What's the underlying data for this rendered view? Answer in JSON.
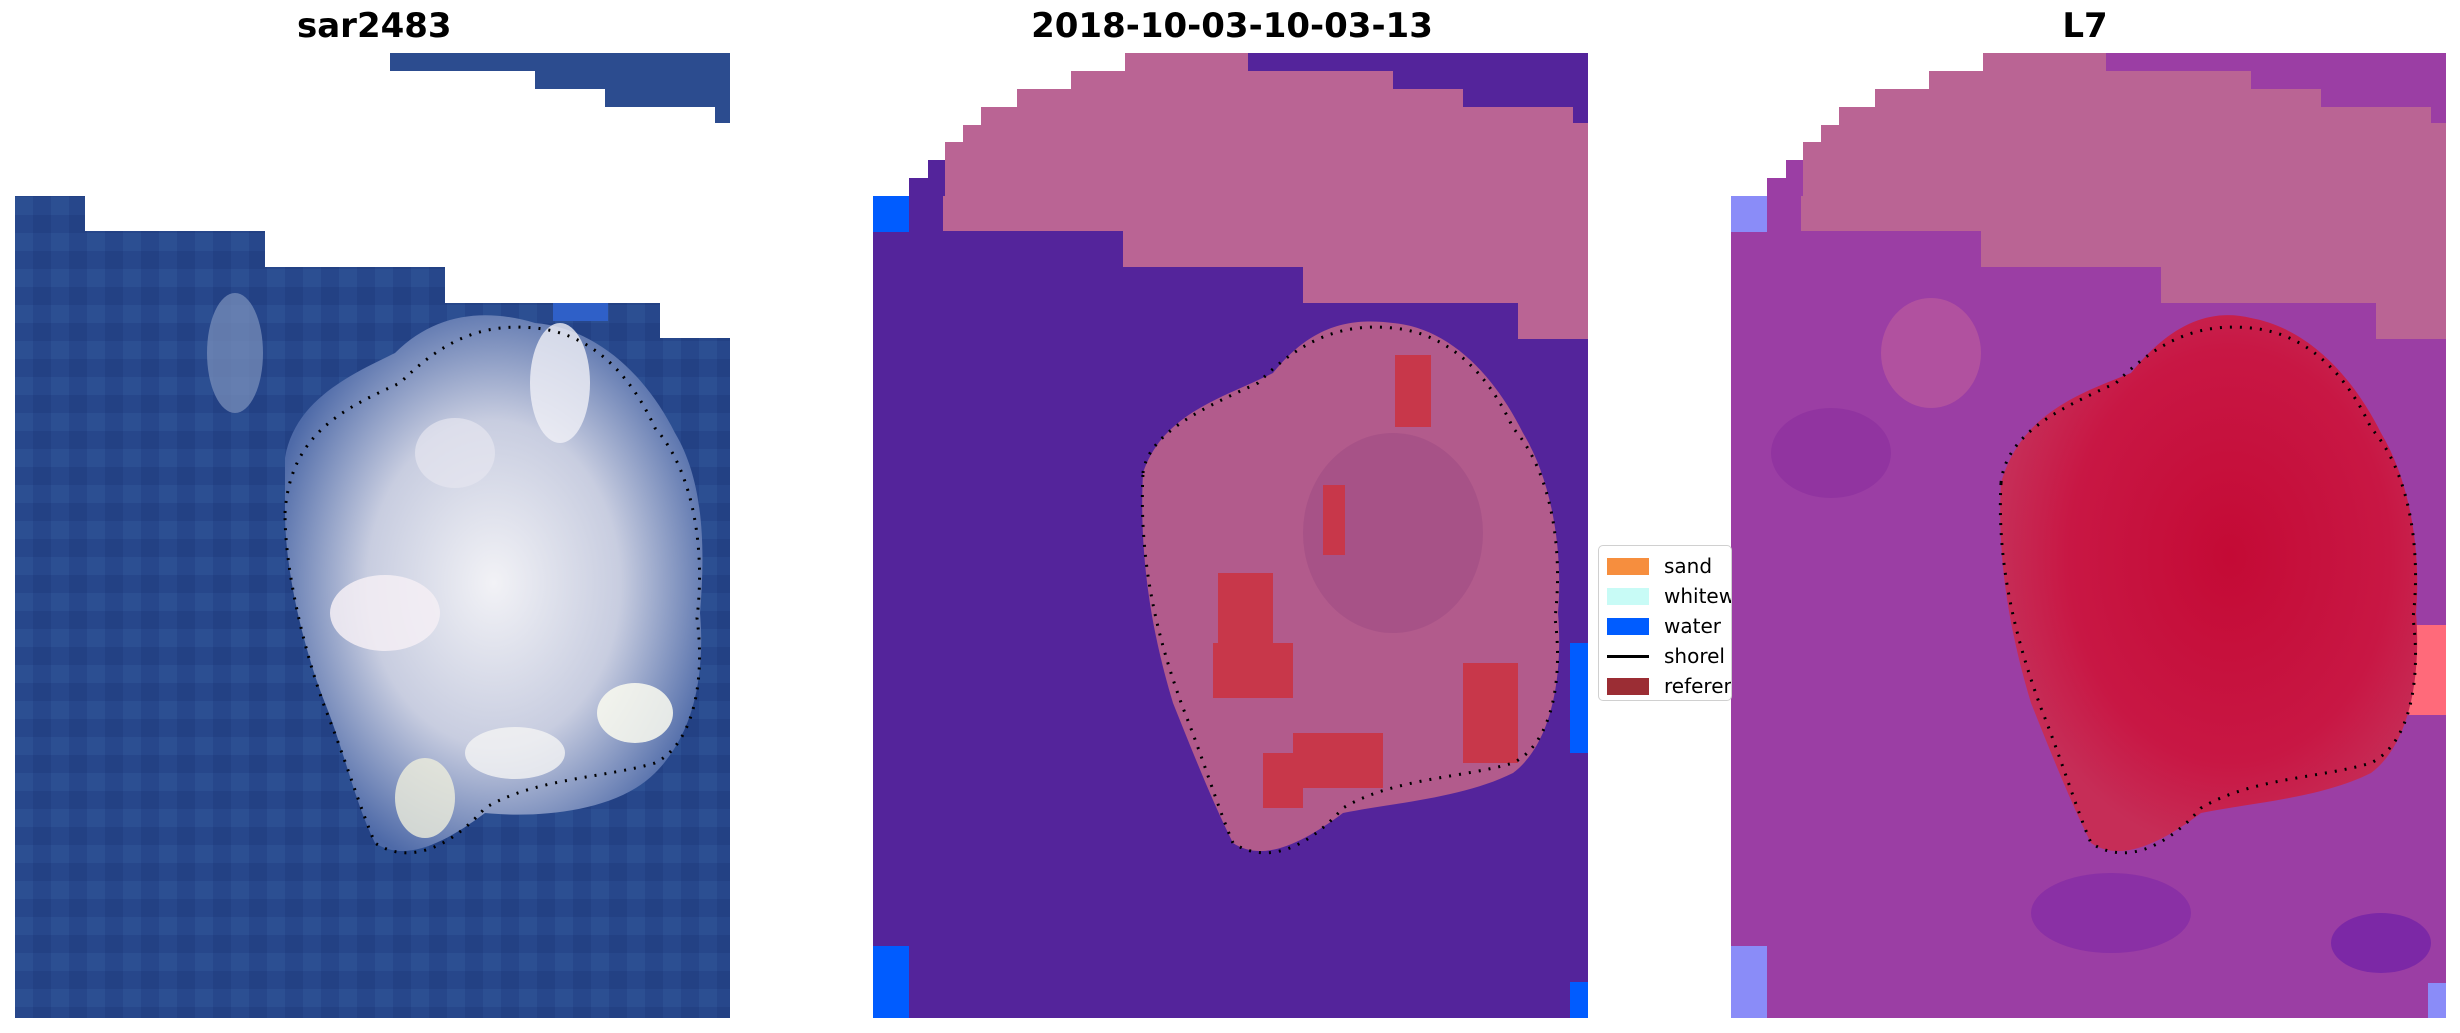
{
  "panels": [
    {
      "title": "sar2483",
      "kind": "rgb"
    },
    {
      "title": "2018-10-03-10-03-13",
      "kind": "classified"
    },
    {
      "title": "L7",
      "kind": "index"
    }
  ],
  "legend": {
    "items": [
      {
        "label": "sand",
        "color": "#f68e3e",
        "type": "patch"
      },
      {
        "label": "whitew",
        "color": "#c8fbf6",
        "type": "patch"
      },
      {
        "label": "water",
        "color": "#005cff",
        "type": "patch"
      },
      {
        "label": "shorel",
        "color": "#000000",
        "type": "line"
      },
      {
        "label": "referen",
        "color": "#9b2d34",
        "type": "patch"
      }
    ]
  },
  "colors": {
    "ocean_rgb": "#2a4b8e",
    "island_rgb": "#dcdce6",
    "classified_bg": "#54249b",
    "classified_cloud": "#ba6494",
    "classified_island": "#b25b8c",
    "classified_red": "#c8374a",
    "index_bg": "#9b3ea4",
    "index_island": "#c4143c",
    "water_edge": "#005cff"
  }
}
